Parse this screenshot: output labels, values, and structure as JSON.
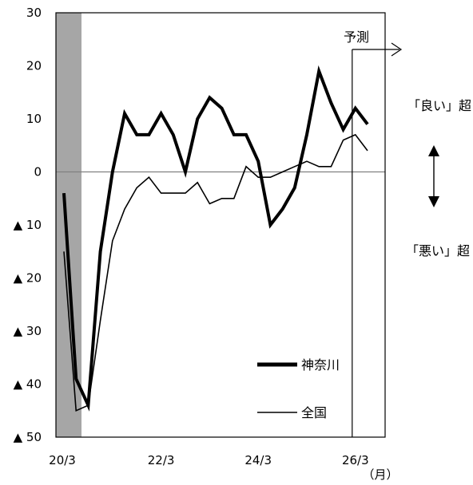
{
  "chart_data": {
    "type": "line",
    "title": "",
    "xlabel": "",
    "x_unit": "（月）",
    "ylabel": "",
    "ylim": [
      -50,
      30
    ],
    "y_ticks": [
      {
        "value": 30,
        "label": "30"
      },
      {
        "value": 20,
        "label": "20"
      },
      {
        "value": 10,
        "label": "10"
      },
      {
        "value": 0,
        "label": "0"
      },
      {
        "value": -10,
        "label": "▲ 10"
      },
      {
        "value": -20,
        "label": "▲ 20"
      },
      {
        "value": -30,
        "label": "▲ 30"
      },
      {
        "value": -40,
        "label": "▲ 40"
      },
      {
        "value": -50,
        "label": "▲ 50"
      }
    ],
    "x_ticks": [
      {
        "label": "20/3",
        "index": 0
      },
      {
        "label": "22/3",
        "index": 8
      },
      {
        "label": "24/3",
        "index": 16
      },
      {
        "label": "26/3",
        "index": 24
      }
    ],
    "x": [
      "20/3",
      "20/6",
      "20/9",
      "20/12",
      "21/3",
      "21/6",
      "21/9",
      "21/12",
      "22/3",
      "22/6",
      "22/9",
      "22/12",
      "23/3",
      "23/6",
      "23/9",
      "23/12",
      "24/3",
      "24/6",
      "24/9",
      "24/12",
      "25/3",
      "25/6",
      "25/9",
      "25/12",
      "26/3",
      "26/6"
    ],
    "series": [
      {
        "name": "神奈川",
        "color": "#000000",
        "style": "thick",
        "values": [
          -4,
          -39,
          -44,
          -15,
          0,
          11,
          7,
          7,
          11,
          7,
          0,
          10,
          14,
          12,
          7,
          7,
          2,
          -10,
          -7,
          -3,
          7,
          19,
          13,
          8,
          12,
          9
        ]
      },
      {
        "name": "全国",
        "color": "#000000",
        "style": "thin",
        "values": [
          -15,
          -45,
          -44,
          -28,
          -13,
          -7,
          -3,
          -1,
          -4,
          -4,
          -4,
          -2,
          -6,
          -5,
          -5,
          1,
          -1,
          -1,
          0,
          1,
          2,
          1,
          1,
          6,
          7,
          4
        ]
      }
    ],
    "recession_shading_index": 0,
    "forecast_start_index": 24,
    "forecast_label": "予測",
    "side_labels": {
      "upper": "「良い」超",
      "lower": "「悪い」超"
    },
    "legend_placement": "bottom-right",
    "grid": false,
    "colors": {
      "shade": "#a6a6a6",
      "zero_line": "#808080",
      "axis": "#000000"
    }
  }
}
